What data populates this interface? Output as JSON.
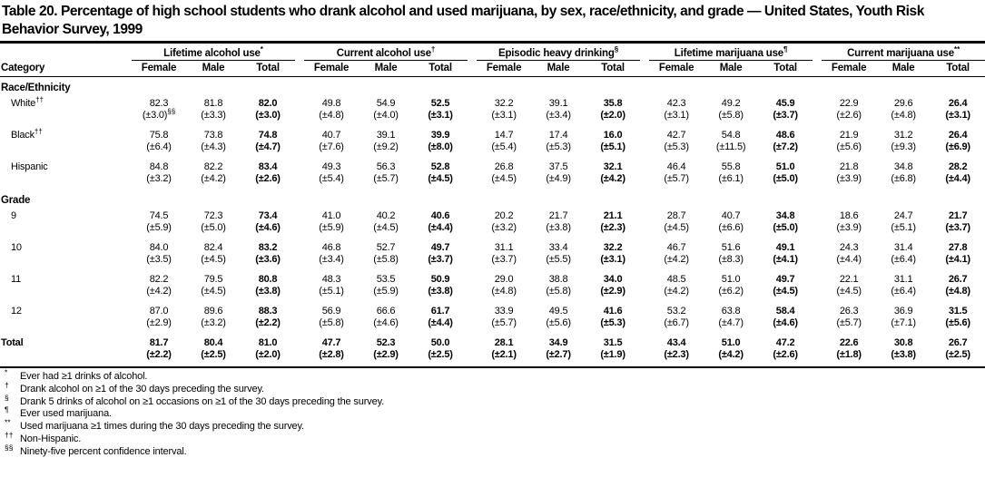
{
  "title": "Table 20. Percentage of high school students who drank alcohol and used marijuana, by sex, race/ethnicity, and grade — United States, Youth Risk Behavior Survey, 1999",
  "table": {
    "category_header": "Category",
    "sub_headers": [
      "Female",
      "Male",
      "Total"
    ],
    "groups": [
      {
        "label": "Lifetime alcohol use",
        "sup": "*"
      },
      {
        "label": "Current alcohol use",
        "sup": "†"
      },
      {
        "label": "Episodic heavy drinking",
        "sup": "§"
      },
      {
        "label": "Lifetime marijuana use",
        "sup": "¶"
      },
      {
        "label": "Current marijuana use",
        "sup": "**"
      }
    ],
    "sections": [
      {
        "label": "Race/Ethnicity",
        "rows": [
          {
            "label": "White",
            "sup": "††",
            "values": [
              "82.3",
              "81.8",
              "82.0",
              "49.8",
              "54.9",
              "52.5",
              "32.2",
              "39.1",
              "35.8",
              "42.3",
              "49.2",
              "45.9",
              "22.9",
              "29.6",
              "26.4"
            ],
            "ci": [
              "(±3.0)§§",
              "(±3.3)",
              "(±3.0)",
              "(±4.8)",
              "(±4.0)",
              "(±3.1)",
              "(±3.1)",
              "(±3.4)",
              "(±2.0)",
              "(±3.1)",
              "(±5.8)",
              "(±3.7)",
              "(±2.6)",
              "(±4.8)",
              "(±3.1)"
            ]
          },
          {
            "label": "Black",
            "sup": "††",
            "values": [
              "75.8",
              "73.8",
              "74.8",
              "40.7",
              "39.1",
              "39.9",
              "14.7",
              "17.4",
              "16.0",
              "42.7",
              "54.8",
              "48.6",
              "21.9",
              "31.2",
              "26.4"
            ],
            "ci": [
              "(±6.4)",
              "(±4.3)",
              "(±4.7)",
              "(±7.6)",
              "(±9.2)",
              "(±8.0)",
              "(±5.4)",
              "(±5.3)",
              "(±5.1)",
              "(±5.3)",
              "(±11.5)",
              "(±7.2)",
              "(±5.6)",
              "(±9.3)",
              "(±6.9)"
            ]
          },
          {
            "label": "Hispanic",
            "sup": "",
            "values": [
              "84.8",
              "82.2",
              "83.4",
              "49.3",
              "56.3",
              "52.8",
              "26.8",
              "37.5",
              "32.1",
              "46.4",
              "55.8",
              "51.0",
              "21.8",
              "34.8",
              "28.2"
            ],
            "ci": [
              "(±3.2)",
              "(±4.2)",
              "(±2.6)",
              "(±5.4)",
              "(±5.7)",
              "(±4.5)",
              "(±4.5)",
              "(±4.9)",
              "(±4.2)",
              "(±5.7)",
              "(±6.1)",
              "(±5.0)",
              "(±3.9)",
              "(±6.8)",
              "(±4.4)"
            ]
          }
        ]
      },
      {
        "label": "Grade",
        "rows": [
          {
            "label": "9",
            "sup": "",
            "values": [
              "74.5",
              "72.3",
              "73.4",
              "41.0",
              "40.2",
              "40.6",
              "20.2",
              "21.7",
              "21.1",
              "28.7",
              "40.7",
              "34.8",
              "18.6",
              "24.7",
              "21.7"
            ],
            "ci": [
              "(±5.9)",
              "(±5.0)",
              "(±4.6)",
              "(±5.9)",
              "(±4.5)",
              "(±4.4)",
              "(±3.2)",
              "(±3.8)",
              "(±2.3)",
              "(±4.5)",
              "(±6.6)",
              "(±5.0)",
              "(±3.9)",
              "(±5.1)",
              "(±3.7)"
            ]
          },
          {
            "label": "10",
            "sup": "",
            "values": [
              "84.0",
              "82.4",
              "83.2",
              "46.8",
              "52.7",
              "49.7",
              "31.1",
              "33.4",
              "32.2",
              "46.7",
              "51.6",
              "49.1",
              "24.3",
              "31.4",
              "27.8"
            ],
            "ci": [
              "(±3.5)",
              "(±4.5)",
              "(±3.6)",
              "(±3.4)",
              "(±5.8)",
              "(±3.7)",
              "(±3.7)",
              "(±5.5)",
              "(±3.1)",
              "(±4.2)",
              "(±8.3)",
              "(±4.1)",
              "(±4.4)",
              "(±6.4)",
              "(±4.1)"
            ]
          },
          {
            "label": "11",
            "sup": "",
            "values": [
              "82.2",
              "79.5",
              "80.8",
              "48.3",
              "53.5",
              "50.9",
              "29.0",
              "38.8",
              "34.0",
              "48.5",
              "51.0",
              "49.7",
              "22.1",
              "31.1",
              "26.7"
            ],
            "ci": [
              "(±4.2)",
              "(±4.5)",
              "(±3.8)",
              "(±5.1)",
              "(±5.9)",
              "(±3.8)",
              "(±4.8)",
              "(±5.8)",
              "(±2.9)",
              "(±4.2)",
              "(±6.2)",
              "(±4.5)",
              "(±4.5)",
              "(±6.4)",
              "(±4.8)"
            ]
          },
          {
            "label": "12",
            "sup": "",
            "values": [
              "87.0",
              "89.6",
              "88.3",
              "56.9",
              "66.6",
              "61.7",
              "33.9",
              "49.5",
              "41.6",
              "53.2",
              "63.8",
              "58.4",
              "26.3",
              "36.9",
              "31.5"
            ],
            "ci": [
              "(±2.9)",
              "(±3.2)",
              "(±2.2)",
              "(±5.8)",
              "(±4.6)",
              "(±4.4)",
              "(±5.7)",
              "(±5.6)",
              "(±5.3)",
              "(±6.7)",
              "(±4.7)",
              "(±4.6)",
              "(±5.7)",
              "(±7.1)",
              "(±5.6)"
            ]
          }
        ]
      }
    ],
    "total_row": {
      "label": "Total",
      "sup": "",
      "values": [
        "81.7",
        "80.4",
        "81.0",
        "47.7",
        "52.3",
        "50.0",
        "28.1",
        "34.9",
        "31.5",
        "43.4",
        "51.0",
        "47.2",
        "22.6",
        "30.8",
        "26.7"
      ],
      "ci": [
        "(±2.2)",
        "(±2.5)",
        "(±2.0)",
        "(±2.8)",
        "(±2.9)",
        "(±2.5)",
        "(±2.1)",
        "(±2.7)",
        "(±1.9)",
        "(±2.3)",
        "(±4.2)",
        "(±2.6)",
        "(±1.8)",
        "(±3.8)",
        "(±2.5)"
      ]
    }
  },
  "footnotes": [
    {
      "marker": "*",
      "text": "Ever had ≥1 drinks of alcohol."
    },
    {
      "marker": "†",
      "text": "Drank alcohol on ≥1 of the 30 days preceding the survey."
    },
    {
      "marker": "§",
      "text": "Drank 5 drinks of alcohol on ≥1 occasions on ≥1 of the 30 days preceding the survey."
    },
    {
      "marker": "¶",
      "text": "Ever used marijuana."
    },
    {
      "marker": "**",
      "text": "Used marijuana ≥1 times during the 30 days preceding the survey."
    },
    {
      "marker": "††",
      "text": "Non-Hispanic."
    },
    {
      "marker": "§§",
      "text": "Ninety-five percent confidence interval."
    }
  ]
}
